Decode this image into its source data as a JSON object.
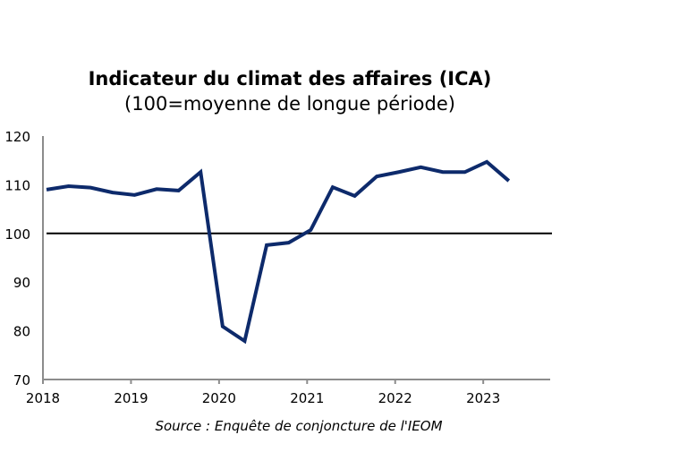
{
  "chart_data": {
    "type": "line",
    "title": "Indicateur du climat des affaires (ICA)",
    "subtitle": "(100=moyenne de longue période)",
    "source": "Source : Enquête de conjoncture de l'IEOM",
    "xlabel": "",
    "ylabel": "",
    "ylim": [
      70,
      120
    ],
    "yticks": [
      70,
      80,
      90,
      100,
      110,
      120
    ],
    "ytick_labels": [
      "70",
      "80",
      "90",
      "100",
      "110",
      "120"
    ],
    "xlim": [
      2018.0,
      2023.75
    ],
    "xticks": [
      2018,
      2019,
      2020,
      2021,
      2022,
      2023
    ],
    "xtick_labels": [
      "2018",
      "2019",
      "2020",
      "2021",
      "2022",
      "2023"
    ],
    "grid": false,
    "reference_line": {
      "y": 100,
      "color": "#000000"
    },
    "series": [
      {
        "name": "ICA",
        "color": "#0d2a6b",
        "x": [
          2018.0,
          2018.25,
          2018.5,
          2018.75,
          2019.0,
          2019.25,
          2019.5,
          2019.75,
          2020.0,
          2020.25,
          2020.5,
          2020.75,
          2021.0,
          2021.25,
          2021.5,
          2021.75,
          2022.0,
          2022.25,
          2022.5,
          2022.75,
          2023.0,
          2023.25
        ],
        "values": [
          109.0,
          109.7,
          109.4,
          108.4,
          107.9,
          109.1,
          108.8,
          112.6,
          80.9,
          77.9,
          97.6,
          98.1,
          100.7,
          109.5,
          107.7,
          111.7,
          112.6,
          113.6,
          112.6,
          112.6,
          114.7,
          110.8
        ]
      }
    ]
  }
}
